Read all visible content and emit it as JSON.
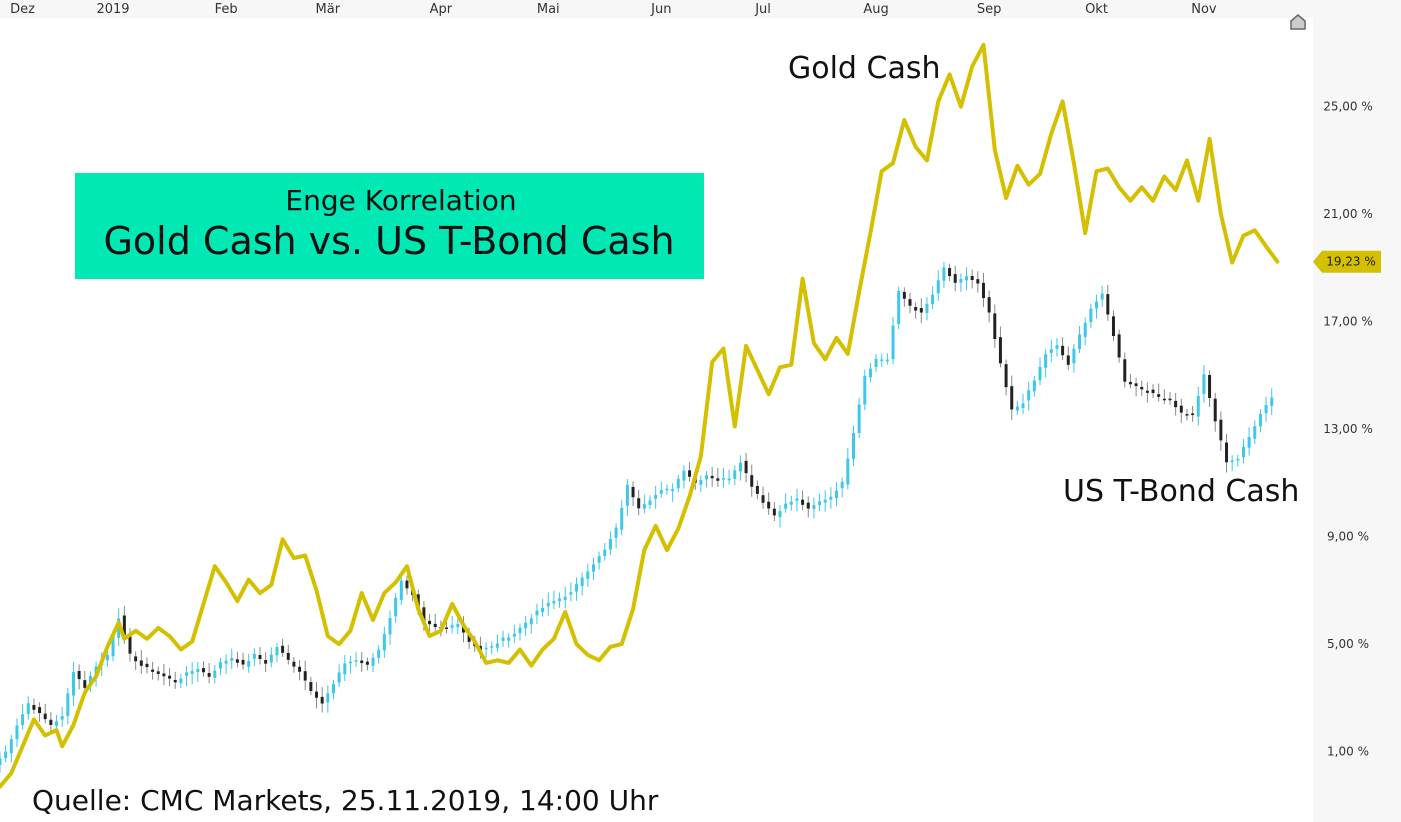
{
  "colors": {
    "gold": "#d4c000",
    "bond_up": "#3cc8e6",
    "bond_down": "#222222",
    "title_bg": "#00e8b4",
    "axis_bg": "#f7f7f7"
  },
  "home_icon": "home-icon",
  "chart_data": {
    "type": "line",
    "title": "Gold Cash vs. US T-Bond Cash",
    "subtitle": "Enge Korrelation",
    "source": "Quelle: CMC Markets, 25.11.2019, 14:00 Uhr",
    "x_ticks": [
      {
        "label": "Dez",
        "t": 0.2
      },
      {
        "label": "2019",
        "t": 1.0
      },
      {
        "label": "Feb",
        "t": 2.0
      },
      {
        "label": "Mär",
        "t": 2.9
      },
      {
        "label": "Apr",
        "t": 3.9
      },
      {
        "label": "Mai",
        "t": 4.85
      },
      {
        "label": "Jun",
        "t": 5.85
      },
      {
        "label": "Jul",
        "t": 6.75
      },
      {
        "label": "Aug",
        "t": 7.75
      },
      {
        "label": "Sep",
        "t": 8.75
      },
      {
        "label": "Okt",
        "t": 9.7
      },
      {
        "label": "Nov",
        "t": 10.65
      }
    ],
    "y_ticks": [
      "1,00 %",
      "5,00 %",
      "9,00 %",
      "13,00 %",
      "17,00 %",
      "21,00 %",
      "25,00 %"
    ],
    "y_tick_values": [
      1,
      5,
      9,
      13,
      17,
      21,
      25
    ],
    "ylim": [
      -0.8,
      28.3
    ],
    "xlim": [
      0,
      11.5
    ],
    "last_value_label": "19,23 %",
    "last_value": 19.23,
    "series": [
      {
        "name": "Gold Cash",
        "kind": "line",
        "points": [
          [
            0.0,
            -0.3
          ],
          [
            0.1,
            0.2
          ],
          [
            0.2,
            1.2
          ],
          [
            0.3,
            2.2
          ],
          [
            0.4,
            1.6
          ],
          [
            0.5,
            1.8
          ],
          [
            0.55,
            1.2
          ],
          [
            0.65,
            2.0
          ],
          [
            0.75,
            3.2
          ],
          [
            0.85,
            3.8
          ],
          [
            0.95,
            4.9
          ],
          [
            1.05,
            5.8
          ],
          [
            1.1,
            5.2
          ],
          [
            1.2,
            5.5
          ],
          [
            1.3,
            5.2
          ],
          [
            1.4,
            5.6
          ],
          [
            1.5,
            5.3
          ],
          [
            1.6,
            4.8
          ],
          [
            1.7,
            5.1
          ],
          [
            1.8,
            6.5
          ],
          [
            1.9,
            7.9
          ],
          [
            2.0,
            7.3
          ],
          [
            2.1,
            6.6
          ],
          [
            2.2,
            7.4
          ],
          [
            2.3,
            6.9
          ],
          [
            2.4,
            7.2
          ],
          [
            2.5,
            8.9
          ],
          [
            2.6,
            8.2
          ],
          [
            2.7,
            8.3
          ],
          [
            2.8,
            7.0
          ],
          [
            2.9,
            5.3
          ],
          [
            3.0,
            5.0
          ],
          [
            3.1,
            5.5
          ],
          [
            3.2,
            6.9
          ],
          [
            3.3,
            5.9
          ],
          [
            3.4,
            6.9
          ],
          [
            3.5,
            7.3
          ],
          [
            3.6,
            7.9
          ],
          [
            3.7,
            6.3
          ],
          [
            3.8,
            5.3
          ],
          [
            3.9,
            5.5
          ],
          [
            4.0,
            6.5
          ],
          [
            4.1,
            5.7
          ],
          [
            4.2,
            5.1
          ],
          [
            4.3,
            4.3
          ],
          [
            4.4,
            4.4
          ],
          [
            4.5,
            4.3
          ],
          [
            4.6,
            4.8
          ],
          [
            4.7,
            4.2
          ],
          [
            4.8,
            4.8
          ],
          [
            4.9,
            5.2
          ],
          [
            5.0,
            6.2
          ],
          [
            5.1,
            5.0
          ],
          [
            5.2,
            4.6
          ],
          [
            5.3,
            4.4
          ],
          [
            5.4,
            4.9
          ],
          [
            5.5,
            5.0
          ],
          [
            5.6,
            6.3
          ],
          [
            5.7,
            8.5
          ],
          [
            5.8,
            9.4
          ],
          [
            5.9,
            8.5
          ],
          [
            6.0,
            9.3
          ],
          [
            6.1,
            10.5
          ],
          [
            6.2,
            12.0
          ],
          [
            6.3,
            15.5
          ],
          [
            6.4,
            16.0
          ],
          [
            6.5,
            13.1
          ],
          [
            6.6,
            16.1
          ],
          [
            6.7,
            15.2
          ],
          [
            6.8,
            14.3
          ],
          [
            6.9,
            15.3
          ],
          [
            7.0,
            15.4
          ],
          [
            7.1,
            18.6
          ],
          [
            7.2,
            16.2
          ],
          [
            7.3,
            15.6
          ],
          [
            7.4,
            16.4
          ],
          [
            7.5,
            15.8
          ],
          [
            7.6,
            18.1
          ],
          [
            7.7,
            20.3
          ],
          [
            7.8,
            22.6
          ],
          [
            7.9,
            22.9
          ],
          [
            8.0,
            24.5
          ],
          [
            8.1,
            23.5
          ],
          [
            8.2,
            23.0
          ],
          [
            8.3,
            25.2
          ],
          [
            8.4,
            26.2
          ],
          [
            8.5,
            25.0
          ],
          [
            8.6,
            26.5
          ],
          [
            8.7,
            27.3
          ],
          [
            8.8,
            23.4
          ],
          [
            8.9,
            21.6
          ],
          [
            9.0,
            22.8
          ],
          [
            9.1,
            22.1
          ],
          [
            9.2,
            22.5
          ],
          [
            9.3,
            24.0
          ],
          [
            9.4,
            25.2
          ],
          [
            9.5,
            22.9
          ],
          [
            9.6,
            20.3
          ],
          [
            9.7,
            22.6
          ],
          [
            9.8,
            22.7
          ],
          [
            9.9,
            22.0
          ],
          [
            10.0,
            21.5
          ],
          [
            10.1,
            22.0
          ],
          [
            10.2,
            21.5
          ],
          [
            10.3,
            22.4
          ],
          [
            10.4,
            21.9
          ],
          [
            10.5,
            23.0
          ],
          [
            10.6,
            21.5
          ],
          [
            10.7,
            23.8
          ],
          [
            10.8,
            21.0
          ],
          [
            10.9,
            19.2
          ],
          [
            11.0,
            20.2
          ],
          [
            11.1,
            20.4
          ],
          [
            11.2,
            19.8
          ],
          [
            11.3,
            19.23
          ]
        ]
      },
      {
        "name": "US T-Bond Cash",
        "kind": "candlestick",
        "points": [
          [
            0.0,
            0.5
          ],
          [
            0.1,
            1.0
          ],
          [
            0.2,
            2.0
          ],
          [
            0.3,
            2.8
          ],
          [
            0.4,
            2.4
          ],
          [
            0.5,
            2.0
          ],
          [
            0.6,
            2.3
          ],
          [
            0.7,
            4.0
          ],
          [
            0.8,
            3.4
          ],
          [
            0.9,
            4.2
          ],
          [
            1.0,
            4.6
          ],
          [
            1.1,
            6.0
          ],
          [
            1.2,
            4.6
          ],
          [
            1.3,
            4.2
          ],
          [
            1.4,
            4.0
          ],
          [
            1.5,
            3.8
          ],
          [
            1.6,
            3.6
          ],
          [
            1.7,
            3.9
          ],
          [
            1.8,
            4.1
          ],
          [
            1.9,
            3.8
          ],
          [
            2.0,
            4.3
          ],
          [
            2.1,
            4.5
          ],
          [
            2.2,
            4.2
          ],
          [
            2.3,
            4.6
          ],
          [
            2.4,
            4.3
          ],
          [
            2.5,
            4.9
          ],
          [
            2.6,
            4.4
          ],
          [
            2.7,
            4.0
          ],
          [
            2.8,
            3.3
          ],
          [
            2.9,
            2.8
          ],
          [
            3.0,
            3.5
          ],
          [
            3.1,
            4.3
          ],
          [
            3.2,
            4.4
          ],
          [
            3.3,
            4.2
          ],
          [
            3.4,
            4.8
          ],
          [
            3.5,
            6.0
          ],
          [
            3.6,
            7.4
          ],
          [
            3.7,
            6.8
          ],
          [
            3.8,
            5.8
          ],
          [
            3.9,
            5.6
          ],
          [
            4.0,
            5.6
          ],
          [
            4.1,
            5.8
          ],
          [
            4.2,
            5.1
          ],
          [
            4.3,
            4.8
          ],
          [
            4.4,
            4.9
          ],
          [
            4.5,
            5.2
          ],
          [
            4.6,
            5.4
          ],
          [
            4.7,
            5.8
          ],
          [
            4.8,
            6.2
          ],
          [
            4.9,
            6.5
          ],
          [
            5.0,
            6.7
          ],
          [
            5.1,
            6.9
          ],
          [
            5.2,
            7.5
          ],
          [
            5.3,
            8.0
          ],
          [
            5.4,
            8.5
          ],
          [
            5.5,
            9.3
          ],
          [
            5.6,
            10.9
          ],
          [
            5.7,
            10.1
          ],
          [
            5.8,
            10.4
          ],
          [
            5.9,
            10.7
          ],
          [
            6.0,
            10.8
          ],
          [
            6.1,
            11.5
          ],
          [
            6.2,
            11.0
          ],
          [
            6.3,
            11.3
          ],
          [
            6.4,
            11.1
          ],
          [
            6.5,
            11.2
          ],
          [
            6.6,
            11.8
          ],
          [
            6.7,
            10.9
          ],
          [
            6.8,
            10.3
          ],
          [
            6.9,
            9.8
          ],
          [
            7.0,
            10.2
          ],
          [
            7.1,
            10.4
          ],
          [
            7.2,
            10.0
          ],
          [
            7.3,
            10.3
          ],
          [
            7.4,
            10.5
          ],
          [
            7.5,
            11.0
          ],
          [
            7.6,
            12.9
          ],
          [
            7.7,
            15.0
          ],
          [
            7.8,
            15.6
          ],
          [
            7.9,
            15.6
          ],
          [
            8.0,
            18.1
          ],
          [
            8.1,
            17.6
          ],
          [
            8.2,
            17.3
          ],
          [
            8.3,
            18.0
          ],
          [
            8.4,
            19.0
          ],
          [
            8.5,
            18.4
          ],
          [
            8.6,
            18.7
          ],
          [
            8.7,
            18.4
          ],
          [
            8.8,
            17.3
          ],
          [
            8.9,
            15.4
          ],
          [
            9.0,
            13.7
          ],
          [
            9.1,
            14.0
          ],
          [
            9.2,
            14.8
          ],
          [
            9.3,
            15.8
          ],
          [
            9.4,
            16.1
          ],
          [
            9.5,
            15.4
          ],
          [
            9.6,
            16.5
          ],
          [
            9.7,
            17.5
          ],
          [
            9.8,
            18.0
          ],
          [
            9.9,
            16.5
          ],
          [
            10.0,
            14.8
          ],
          [
            10.1,
            14.6
          ],
          [
            10.2,
            14.4
          ],
          [
            10.3,
            14.2
          ],
          [
            10.4,
            14.1
          ],
          [
            10.5,
            13.6
          ],
          [
            10.6,
            13.5
          ],
          [
            10.7,
            15.0
          ],
          [
            10.8,
            13.3
          ],
          [
            10.9,
            11.8
          ],
          [
            11.0,
            11.9
          ],
          [
            11.1,
            12.7
          ],
          [
            11.2,
            13.6
          ],
          [
            11.3,
            14.2
          ]
        ]
      }
    ]
  }
}
